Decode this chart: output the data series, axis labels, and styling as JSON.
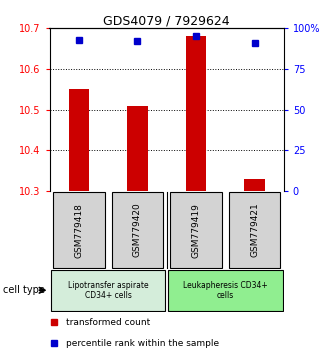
{
  "title": "GDS4079 / 7929624",
  "samples": [
    "GSM779418",
    "GSM779420",
    "GSM779419",
    "GSM779421"
  ],
  "transformed_counts": [
    10.55,
    10.51,
    10.68,
    10.33
  ],
  "percentile_ranks": [
    93,
    92,
    95,
    91
  ],
  "ylim_left": [
    10.3,
    10.7
  ],
  "ylim_right": [
    0,
    100
  ],
  "yticks_left": [
    10.3,
    10.4,
    10.5,
    10.6,
    10.7
  ],
  "yticks_right": [
    0,
    25,
    50,
    75,
    100
  ],
  "ytick_labels_right": [
    "0",
    "25",
    "50",
    "75",
    "100%"
  ],
  "bar_color": "#cc0000",
  "dot_color": "#0000cc",
  "group1_label": "Lipotransfer aspirate\nCD34+ cells",
  "group2_label": "Leukapheresis CD34+\ncells",
  "group1_color": "#d4edda",
  "group2_color": "#90ee90",
  "cell_type_label": "cell type",
  "legend_bar_label": "transformed count",
  "legend_dot_label": "percentile rank within the sample",
  "sample_box_color": "#d3d3d3",
  "bar_bottom": 10.3,
  "grid_yticks": [
    10.4,
    10.5,
    10.6
  ]
}
